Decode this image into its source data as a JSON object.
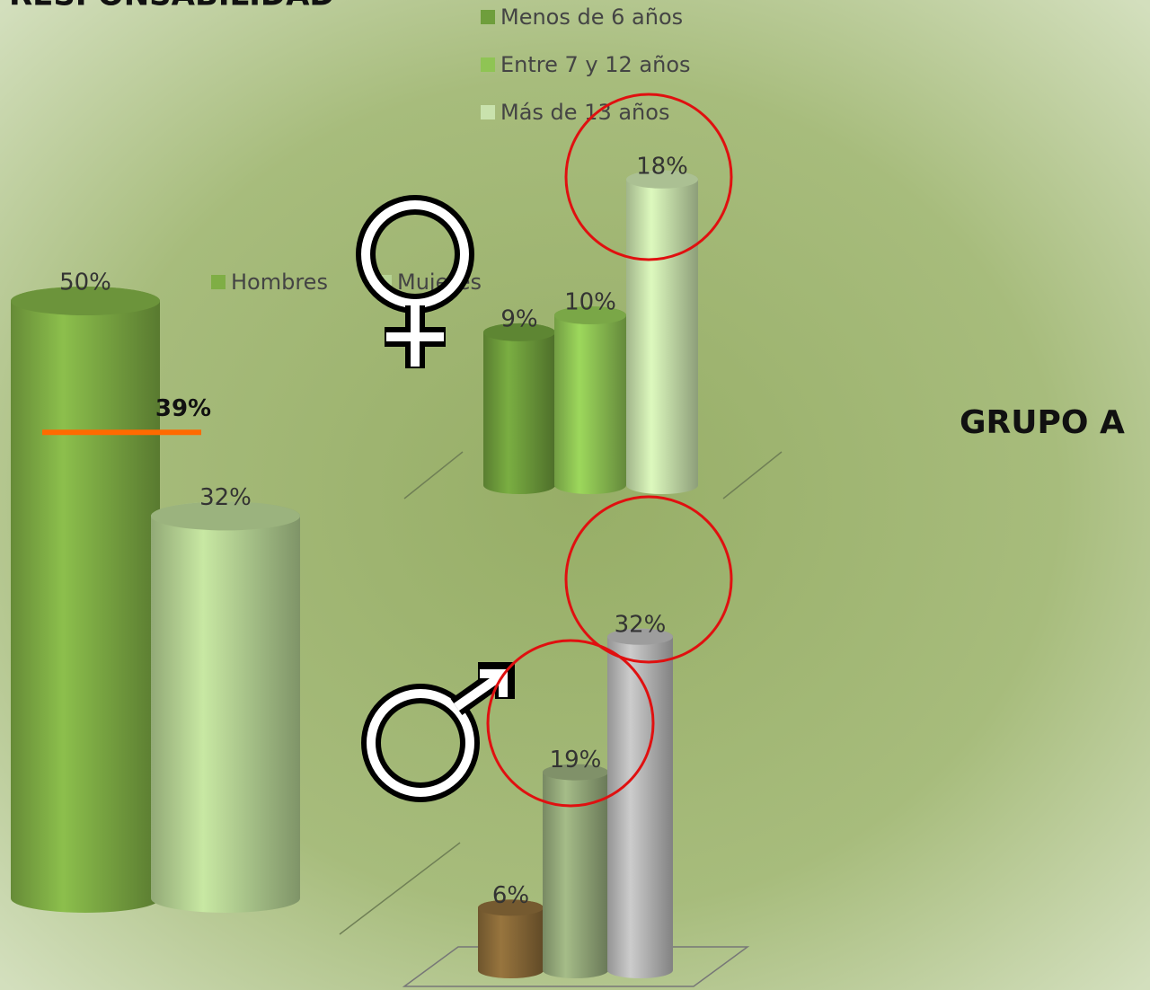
{
  "title": "RESPONSABILIDAD",
  "group_label": "GRUPO A",
  "chart_data": [
    {
      "type": "bar",
      "categories": [
        "Hombres",
        "Mujeres"
      ],
      "values": [
        50,
        32
      ],
      "value_labels": [
        "50%",
        "32%"
      ],
      "colors": [
        "#7fae45",
        "#b6d394"
      ],
      "annotation": {
        "value": 39,
        "label": "39%",
        "color": "#ff6a00"
      }
    },
    {
      "type": "bar",
      "categories": [
        "Menos de 6 años",
        "Entre 7 y 12 años",
        "Más de 13 años"
      ],
      "values": [
        9,
        10,
        18
      ],
      "value_labels": [
        "9%",
        "10%",
        "18%"
      ],
      "colors": [
        "#6f9e3c",
        "#8fc454",
        "#c9e2ad"
      ]
    },
    {
      "type": "bar",
      "values": [
        6,
        19,
        32
      ],
      "value_labels": [
        "6%",
        "19%",
        "32%"
      ],
      "colors": [
        "#8a6a38",
        "#96ab7c",
        "#b9b9b9"
      ]
    }
  ]
}
